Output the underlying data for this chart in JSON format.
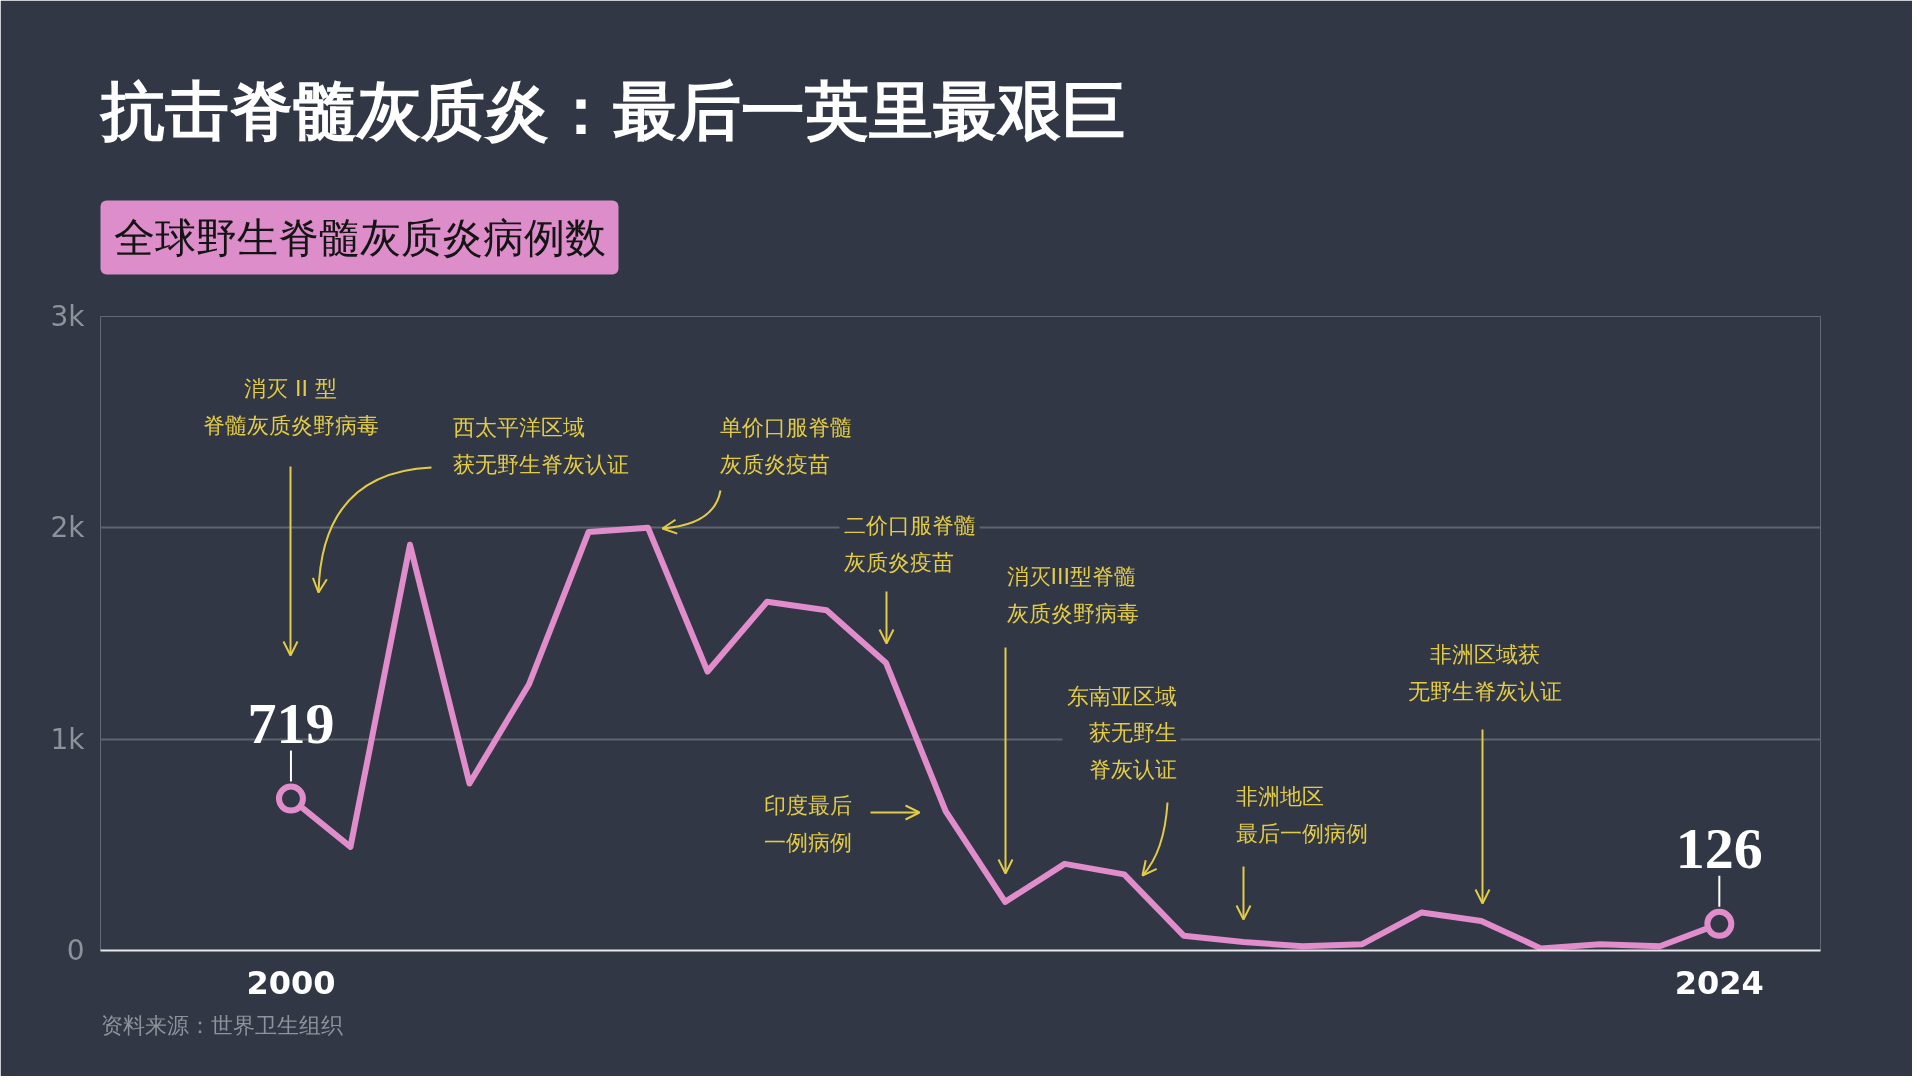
{
  "chart_data": {
    "type": "line",
    "title": "抗击脊髓灰质炎：最后一英里最艰巨",
    "subtitle": "全球野生脊髓灰质炎病例数",
    "x": [
      2000,
      2001,
      2002,
      2003,
      2004,
      2005,
      2006,
      2007,
      2008,
      2009,
      2010,
      2011,
      2012,
      2013,
      2014,
      2015,
      2016,
      2017,
      2018,
      2019,
      2020,
      2021,
      2022,
      2023,
      2024
    ],
    "values": [
      719,
      490,
      1920,
      790,
      1260,
      1980,
      2000,
      1320,
      1650,
      1610,
      1360,
      660,
      230,
      410,
      360,
      70,
      40,
      20,
      30,
      180,
      140,
      10,
      30,
      20,
      126
    ],
    "value_labels": [
      "719",
      null,
      null,
      null,
      null,
      null,
      null,
      null,
      null,
      null,
      null,
      null,
      null,
      null,
      null,
      null,
      null,
      null,
      null,
      null,
      null,
      null,
      null,
      null,
      "126"
    ],
    "color": "#e18ccb",
    "line_style": "solid",
    "xlim": [
      1996.8,
      2025.7
    ],
    "xticks": [
      2000,
      2024
    ],
    "ylim": [
      0,
      3000
    ],
    "yticks": [
      0,
      {
        "value": 1000,
        "label": "1k"
      },
      {
        "value": 2000,
        "label": "2k"
      },
      {
        "value": 3000,
        "label": "3k"
      }
    ],
    "grid": "y",
    "annotations": [
      "消灭 II 型脊髓灰质炎野病毒",
      "西太平洋区域获无野生脊灰认证",
      "单价口服脊髓灰质炎疫苗",
      "二价口服脊髓灰质炎疫苗",
      "消灭III型脊髓灰质炎野病毒",
      "东南亚区域获无野生脊灰认证",
      "印度最后一例病例",
      "非洲地区最后一例病例",
      "非洲区域获无野生脊灰认证",
      "资料来源：世界卫生组织"
    ]
  }
}
